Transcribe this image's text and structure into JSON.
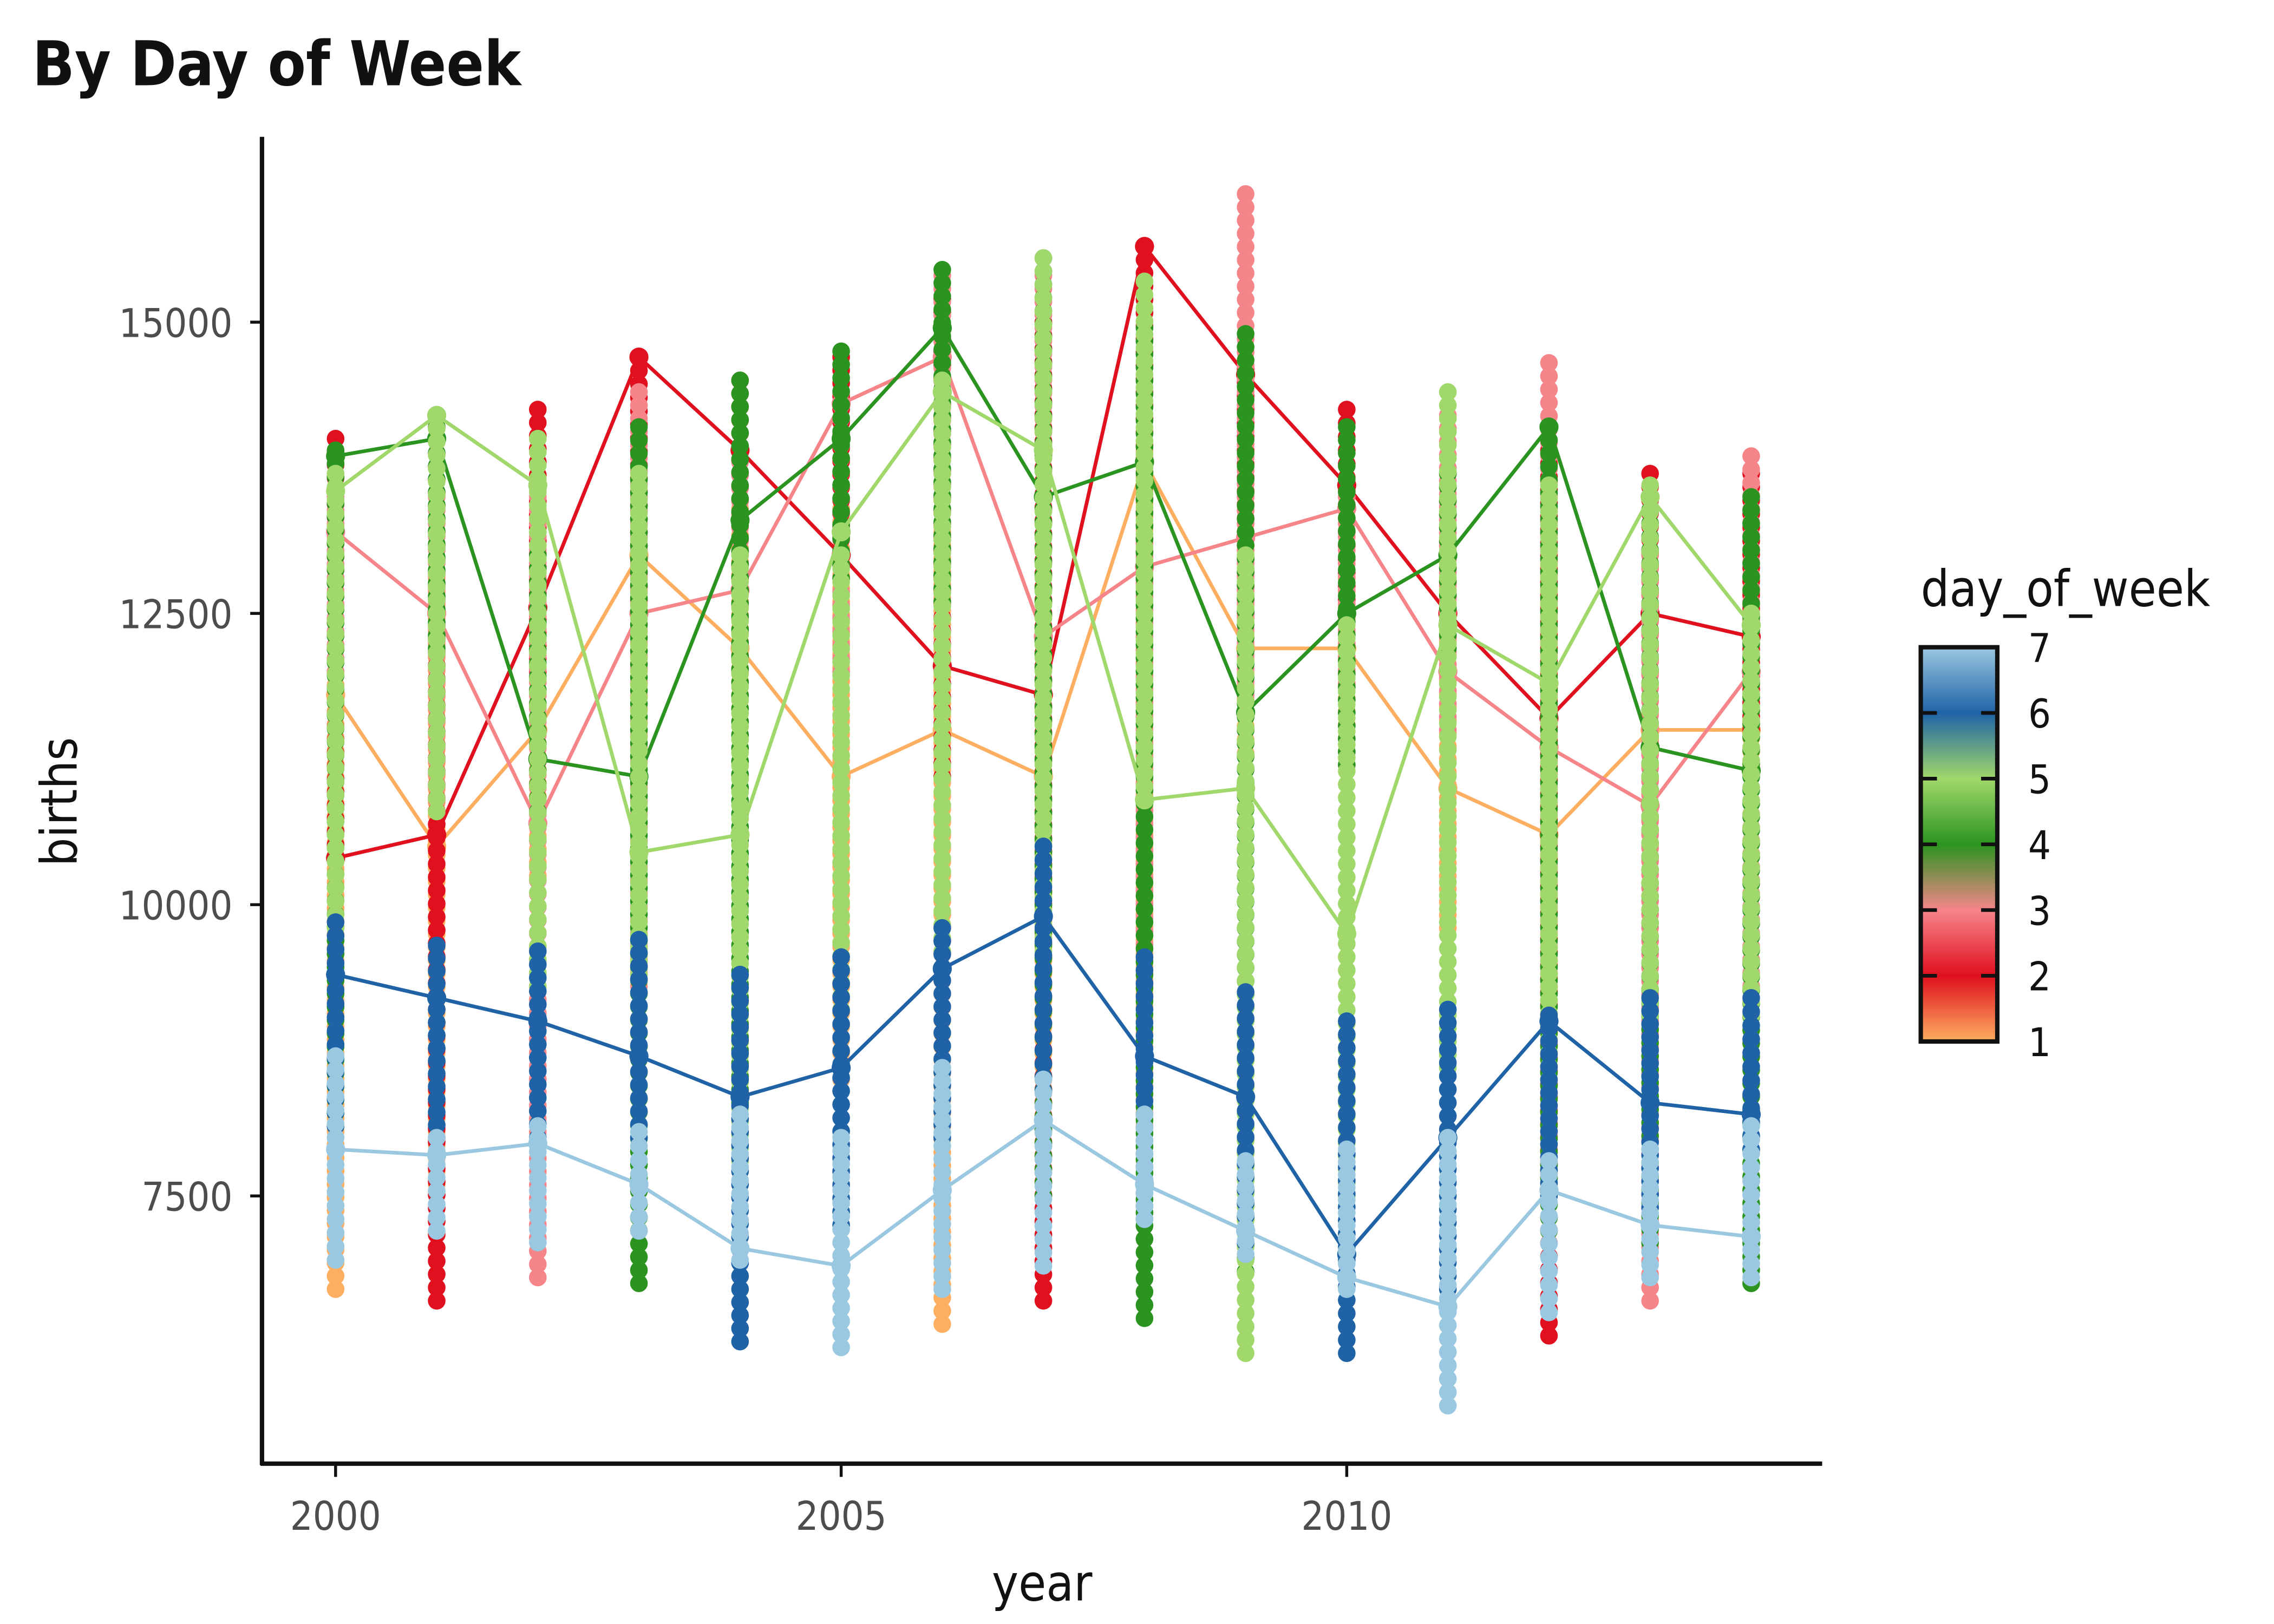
{
  "chart_data": {
    "type": "line",
    "title": "By Day of Week",
    "xlabel": "year",
    "ylabel": "births",
    "xlim": [
      1999.3,
      2014.7
    ],
    "ylim": [
      5500,
      16500
    ],
    "x_ticks": [
      2000,
      2005,
      2010
    ],
    "y_ticks": [
      7500,
      10000,
      12500,
      15000
    ],
    "grid": false,
    "legend": {
      "title": "day_of_week",
      "type": "colorbar",
      "placement": "right",
      "labels": [
        "1",
        "2",
        "3",
        "4",
        "5",
        "6",
        "7"
      ],
      "colors": [
        "#fdae61",
        "#e0101e",
        "#f6858a",
        "#2b9420",
        "#a0d86b",
        "#1f63a6",
        "#9ac8e0"
      ]
    },
    "x": [
      2000,
      2001,
      2002,
      2003,
      2004,
      2005,
      2006,
      2007,
      2008,
      2009,
      2010,
      2011,
      2012,
      2013,
      2014
    ],
    "series": [
      {
        "day": 1,
        "color": "#fdae61",
        "min": [
          6700,
          7600,
          10250,
          10700,
          11000,
          8500,
          6400,
          7700,
          8100,
          11300,
          11200,
          9800,
          7600,
          10400,
          11200
        ],
        "max": [
          12900,
          12800,
          13200,
          13200,
          13400,
          13400,
          13200,
          13500,
          13900,
          13500,
          12800,
          12700,
          12900,
          13000,
          12800
        ],
        "typical": [
          11800,
          10500,
          11500,
          13000,
          12200,
          11100,
          11500,
          11100,
          13800,
          12200,
          12200,
          11000,
          10600,
          11500,
          11500
        ]
      },
      {
        "day": 2,
        "color": "#e0101e",
        "min": [
          10400,
          6600,
          12000,
          12500,
          12800,
          12800,
          11100,
          6600,
          12800,
          12500,
          12500,
          12300,
          6300,
          12000,
          11500
        ],
        "max": [
          14000,
          14100,
          14250,
          14700,
          14500,
          14700,
          15200,
          15000,
          15650,
          14600,
          14250,
          13700,
          13900,
          13700,
          13700
        ],
        "typical": [
          10400,
          10600,
          12550,
          14700,
          13900,
          13000,
          12050,
          11800,
          15650,
          14550,
          13600,
          12500,
          11600,
          12500,
          12300
        ]
      },
      {
        "day": 3,
        "color": "#f6858a",
        "min": [
          12000,
          10900,
          6800,
          9300,
          12000,
          12000,
          12000,
          11700,
          9200,
          11800,
          11900,
          11500,
          9300,
          6600,
          9300
        ],
        "max": [
          13500,
          13500,
          13500,
          14400,
          13800,
          14400,
          15400,
          15400,
          13100,
          16100,
          13500,
          14200,
          14650,
          13000,
          13850
        ],
        "typical": [
          13200,
          12500,
          10700,
          12500,
          12700,
          14300,
          14700,
          12300,
          12900,
          13150,
          13400,
          12000,
          11350,
          10850,
          12000
        ]
      },
      {
        "day": 4,
        "color": "#2b9420",
        "min": [
          8100,
          12200,
          10800,
          6750,
          8300,
          12800,
          12600,
          7500,
          6450,
          6850,
          11200,
          12200,
          7200,
          7100,
          6750
        ],
        "max": [
          13900,
          14100,
          13000,
          14100,
          14500,
          14750,
          15450,
          15550,
          14950,
          14900,
          14100,
          13700,
          14100,
          13500,
          13500
        ],
        "typical": [
          13850,
          14000,
          11250,
          11100,
          13300,
          14000,
          14950,
          13500,
          13800,
          11650,
          12500,
          13000,
          14100,
          11350,
          11150
        ]
      },
      {
        "day": 5,
        "color": "#a0d86b",
        "min": [
          9800,
          10800,
          9300,
          9400,
          7800,
          9100,
          9600,
          9600,
          10900,
          6150,
          7500,
          8600,
          8500,
          9050,
          9050
        ],
        "max": [
          13700,
          14200,
          14000,
          13700,
          13000,
          13000,
          14500,
          15550,
          15350,
          13000,
          12400,
          14400,
          13600,
          13600,
          12500
        ],
        "typical": [
          13550,
          14200,
          13600,
          10450,
          10600,
          13200,
          14400,
          13900,
          10900,
          11000,
          9750,
          12400,
          11900,
          13500,
          12400
        ]
      },
      {
        "day": 6,
        "color": "#1f63a6",
        "min": [
          8100,
          8000,
          8000,
          8000,
          6250,
          7250,
          8000,
          8400,
          7300,
          7100,
          6150,
          6700,
          7500,
          7400,
          7900
        ],
        "max": [
          9850,
          9650,
          9600,
          9700,
          9400,
          9550,
          9800,
          10500,
          9550,
          9250,
          9000,
          9100,
          9050,
          9200,
          9200
        ],
        "typical": [
          9400,
          9200,
          9000,
          8700,
          8350,
          8600,
          9450,
          9900,
          8700,
          8350,
          7000,
          8000,
          9000,
          8300,
          8200
        ]
      },
      {
        "day": 7,
        "color": "#9ac8e0",
        "min": [
          6950,
          7200,
          7100,
          7200,
          6950,
          6200,
          6700,
          6900,
          7300,
          7000,
          6700,
          5700,
          6500,
          6800,
          6800
        ],
        "max": [
          8700,
          8000,
          8100,
          8050,
          8200,
          8000,
          8600,
          8500,
          8200,
          7800,
          7900,
          8000,
          7800,
          7900,
          8100
        ],
        "typical": [
          7900,
          7850,
          7950,
          7600,
          7050,
          6900,
          7550,
          8150,
          7600,
          7200,
          6800,
          6550,
          7550,
          7250,
          7150
        ]
      }
    ]
  }
}
